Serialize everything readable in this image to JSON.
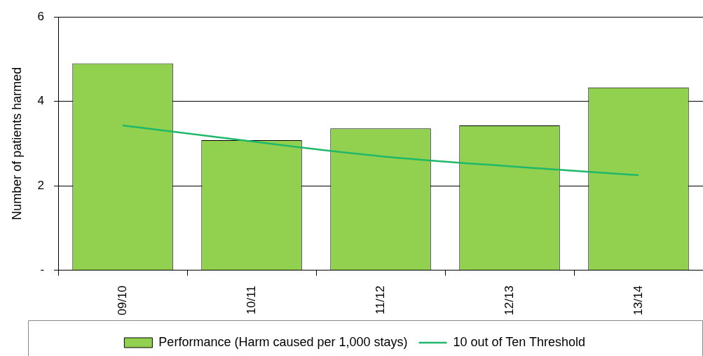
{
  "chart_data": {
    "type": "bar",
    "ylabel": "Number of patients harmed",
    "categories": [
      "09/10",
      "10/11",
      "11/12",
      "12/13",
      "13/14"
    ],
    "series": [
      {
        "name": "Performance (Harm caused per 1,000 stays)",
        "color": "#92d050",
        "values": [
          4.9,
          3.08,
          3.36,
          3.43,
          4.33
        ]
      },
      {
        "name": "10 out of Ten Threshold",
        "type": "line",
        "color": "#1fb86b",
        "values": [
          3.43,
          3.05,
          2.7,
          2.46,
          2.25
        ]
      }
    ],
    "ylim": [
      0,
      6
    ],
    "yticks": [
      {
        "value": 0,
        "label": "-"
      },
      2,
      4,
      6
    ],
    "grid": "y",
    "legend": "bottom",
    "marker": "none",
    "line_style": "solid"
  }
}
